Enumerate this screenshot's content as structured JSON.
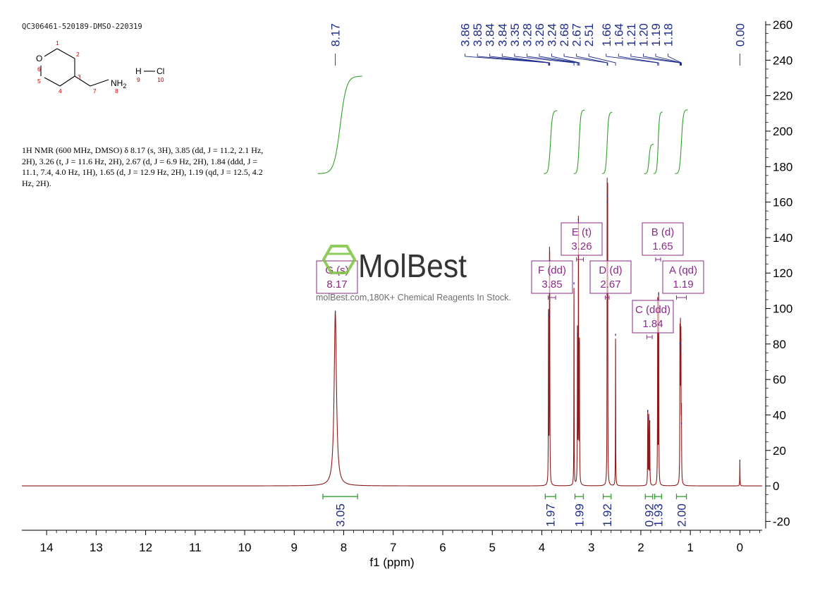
{
  "sample_id": "QC306461-520189-DMSO-220319",
  "nmr_description": "1H NMR (600 MHz, DMSO) δ 8.17 (s, 3H), 3.85 (dd, J = 11.2, 2.1 Hz, 2H), 3.26 (t, J = 11.6 Hz, 2H), 2.67 (d, J = 6.9 Hz, 2H), 1.84 (ddd, J = 11.1, 7.4, 4.0 Hz, 1H), 1.65 (d, J = 12.9 Hz, 2H), 1.19 (qd, J = 12.5, 4.2 Hz, 2H).",
  "structure": {
    "atom_O": "O",
    "atom_N": "NH",
    "atom_N_sub": "2",
    "atom_H": "H",
    "atom_Cl": "Cl",
    "numbers": [
      "1",
      "2",
      "3",
      "4",
      "5",
      "6",
      "7",
      "8",
      "9",
      "10"
    ]
  },
  "watermark": {
    "brand": "MolBest",
    "tagline": "molBest.com,180K+ Chemical Reagents In Stock."
  },
  "colors": {
    "spectrum": "#8b1a1a",
    "integral": "#33a02c",
    "label": "#1f2d8a",
    "multiplet": "#8a2b8a",
    "atom_number": "#cc0000"
  },
  "chart_data": {
    "type": "line",
    "xlabel": "f1 (ppm)",
    "xlim": [
      14.5,
      -0.45
    ],
    "ylim": [
      -25,
      262
    ],
    "x_ticks": [
      14,
      13,
      12,
      11,
      10,
      9,
      8,
      7,
      6,
      5,
      4,
      3,
      2,
      1,
      0
    ],
    "y_ticks": [
      260,
      240,
      220,
      200,
      180,
      160,
      140,
      120,
      100,
      80,
      60,
      40,
      20,
      0,
      -20
    ],
    "peaks": [
      {
        "ppm": 8.17,
        "height": 98,
        "width": 0.028
      },
      {
        "ppm": 3.864,
        "height": 96,
        "width": 0.0035
      },
      {
        "ppm": 3.845,
        "height": 98,
        "width": 0.0035
      },
      {
        "ppm": 3.84,
        "height": 95,
        "width": 0.0035
      },
      {
        "ppm": 3.35,
        "height": 114,
        "width": 0.003
      },
      {
        "ppm": 3.28,
        "height": 85,
        "width": 0.0035
      },
      {
        "ppm": 3.26,
        "height": 150,
        "width": 0.0035
      },
      {
        "ppm": 3.24,
        "height": 80,
        "width": 0.0035
      },
      {
        "ppm": 2.68,
        "height": 160,
        "width": 0.003
      },
      {
        "ppm": 2.67,
        "height": 163,
        "width": 0.003
      },
      {
        "ppm": 2.51,
        "height": 85,
        "width": 0.003
      },
      {
        "ppm": 1.86,
        "height": 42,
        "width": 0.0035
      },
      {
        "ppm": 1.84,
        "height": 38,
        "width": 0.0035
      },
      {
        "ppm": 1.82,
        "height": 36,
        "width": 0.0035
      },
      {
        "ppm": 1.66,
        "height": 103,
        "width": 0.0035
      },
      {
        "ppm": 1.64,
        "height": 108,
        "width": 0.0035
      },
      {
        "ppm": 1.21,
        "height": 80,
        "width": 0.0035
      },
      {
        "ppm": 1.2,
        "height": 78,
        "width": 0.0035
      },
      {
        "ppm": 1.19,
        "height": 76,
        "width": 0.0035
      },
      {
        "ppm": 1.18,
        "height": 35,
        "width": 0.0035
      },
      {
        "ppm": 0.0,
        "height": 14,
        "width": 0.003
      }
    ],
    "peak_labels": [
      {
        "text": "8.17",
        "target": 8.17,
        "pos": 8.17
      },
      {
        "text": "3.86",
        "target": 3.864,
        "pos": 5.55
      },
      {
        "text": "3.85",
        "target": 3.853,
        "pos": 5.3
      },
      {
        "text": "3.84",
        "target": 3.845,
        "pos": 5.05
      },
      {
        "text": "3.84",
        "target": 3.84,
        "pos": 4.8
      },
      {
        "text": "3.35",
        "target": 3.35,
        "pos": 4.55
      },
      {
        "text": "3.28",
        "target": 3.28,
        "pos": 4.3
      },
      {
        "text": "3.26",
        "target": 3.26,
        "pos": 4.05
      },
      {
        "text": "3.24",
        "target": 3.24,
        "pos": 3.8
      },
      {
        "text": "2.68",
        "target": 2.68,
        "pos": 3.55
      },
      {
        "text": "2.67",
        "target": 2.67,
        "pos": 3.3
      },
      {
        "text": "2.51",
        "target": 2.51,
        "pos": 3.05
      },
      {
        "text": "1.66",
        "target": 1.66,
        "pos": 2.7
      },
      {
        "text": "1.64",
        "target": 1.64,
        "pos": 2.45
      },
      {
        "text": "1.21",
        "target": 1.21,
        "pos": 2.2
      },
      {
        "text": "1.20",
        "target": 1.2,
        "pos": 1.95
      },
      {
        "text": "1.19",
        "target": 1.19,
        "pos": 1.7
      },
      {
        "text": "1.18",
        "target": 1.18,
        "pos": 1.45
      },
      {
        "text": "0.00",
        "target": 0.0,
        "pos": 0.0
      }
    ],
    "integrals": [
      {
        "value": "3.05",
        "from": 8.42,
        "to": 7.72
      },
      {
        "value": "1.97",
        "from": 3.93,
        "to": 3.72
      },
      {
        "value": "1.99",
        "from": 3.33,
        "to": 3.16
      },
      {
        "value": "1.92",
        "from": 2.76,
        "to": 2.6
      },
      {
        "value": "0.92",
        "from": 1.91,
        "to": 1.76
      },
      {
        "value": "1.93",
        "from": 1.72,
        "to": 1.58
      },
      {
        "value": "2.00",
        "from": 1.28,
        "to": 1.08
      }
    ],
    "multiplets": [
      {
        "label": "G (s)",
        "shift": "8.17",
        "center": 8.17,
        "from": 8.17,
        "to": 8.17
      },
      {
        "label": "F (dd)",
        "shift": "3.85",
        "center": 3.85,
        "from": 3.87,
        "to": 3.72
      },
      {
        "label": "E (t)",
        "shift": "3.26",
        "center": 3.26,
        "from": 3.3,
        "to": 3.16
      },
      {
        "label": "D (d)",
        "shift": "2.67",
        "center": 2.67,
        "from": 2.72,
        "to": 2.64
      },
      {
        "label": "C (ddd)",
        "shift": "1.84",
        "center": 1.84,
        "from": 1.88,
        "to": 1.77
      },
      {
        "label": "B (d)",
        "shift": "1.65",
        "center": 1.65,
        "from": 1.7,
        "to": 1.6
      },
      {
        "label": "A (qd)",
        "shift": "1.19",
        "center": 1.19,
        "from": 1.28,
        "to": 1.08
      }
    ]
  }
}
